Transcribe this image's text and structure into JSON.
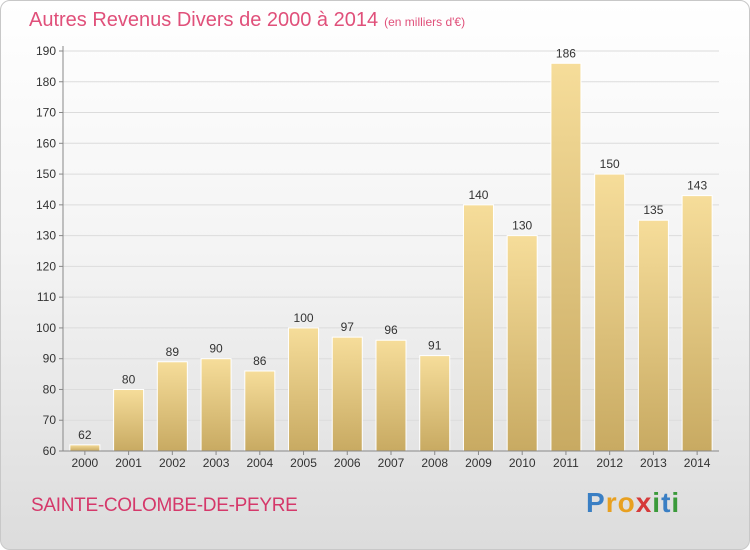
{
  "header": {
    "title": "Autres Revenus Divers de 2000 à 2014",
    "subtitle": "(en milliers d'€)"
  },
  "footer": {
    "commune": "SAINTE-COLOMBE-DE-PEYRE",
    "logo": [
      "P",
      "r",
      "o",
      "x",
      "i",
      "t",
      "i"
    ],
    "logo_colors": [
      "#3a7fc4",
      "#e8a020",
      "#e8a020",
      "#d63a3a",
      "#3a9a3a",
      "#3a7fc4",
      "#3a9a3a"
    ]
  },
  "colors": {
    "bar_top": "#f6dd9a",
    "bar_bottom": "#c8aa62",
    "grid": "#dcdcdc",
    "axis": "#888888",
    "text": "#333333"
  },
  "chart_data": {
    "type": "bar",
    "categories": [
      "2000",
      "2001",
      "2002",
      "2003",
      "2004",
      "2005",
      "2006",
      "2007",
      "2008",
      "2009",
      "2010",
      "2011",
      "2012",
      "2013",
      "2014"
    ],
    "values": [
      62,
      80,
      89,
      90,
      86,
      100,
      97,
      96,
      91,
      140,
      130,
      186,
      150,
      135,
      143
    ],
    "ylim": [
      60,
      190
    ],
    "yticks": [
      60,
      70,
      80,
      90,
      100,
      110,
      120,
      130,
      140,
      150,
      160,
      170,
      180,
      190
    ],
    "grid": true
  }
}
